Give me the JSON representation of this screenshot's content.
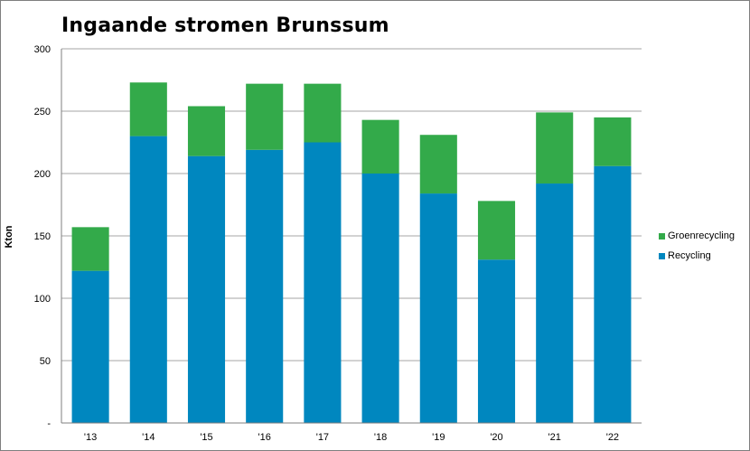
{
  "chart_data": {
    "type": "bar",
    "stacked": true,
    "title": "Ingaande stromen Brunssum",
    "xlabel": "",
    "ylabel": "Kton",
    "ylim": [
      0,
      300
    ],
    "yticks": [
      0,
      50,
      100,
      150,
      200,
      250,
      300
    ],
    "ytick_labels": [
      "-",
      "50",
      "100",
      "150",
      "200",
      "250",
      "300"
    ],
    "categories": [
      "'13",
      "'14",
      "'15",
      "'16",
      "'17",
      "'18",
      "'19",
      "'20",
      "'21",
      "'22"
    ],
    "series": [
      {
        "name": "Recycling",
        "color": "#0087bf",
        "values": [
          122,
          230,
          214,
          219,
          225,
          200,
          184,
          131,
          192,
          206
        ]
      },
      {
        "name": "Groenrecycling",
        "color": "#33aa4a",
        "values": [
          35,
          43,
          40,
          53,
          47,
          43,
          47,
          47,
          57,
          39
        ]
      }
    ],
    "grid": true,
    "legend_position": "right"
  }
}
